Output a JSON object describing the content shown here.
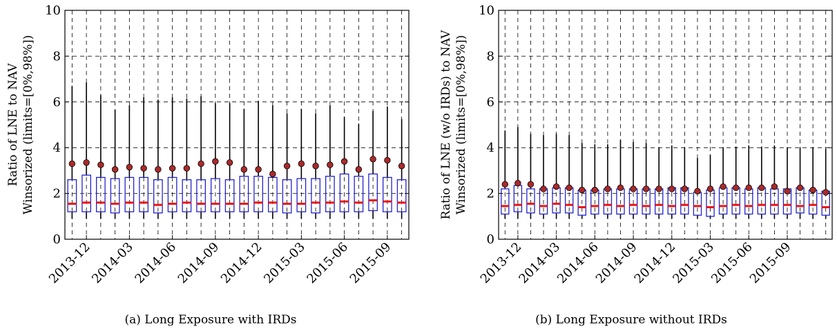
{
  "captions": [
    "(a) Long Exposure with IRDs",
    "(b) Long Exposure without IRDs"
  ],
  "colors": {
    "box": "#2222cc",
    "median": "#ee1111",
    "mean_fill": "#aa2a2a",
    "whisker": "#000000",
    "grid": "#000000"
  },
  "chart_data": [
    {
      "type": "box",
      "ylabel_lines": [
        "Ratio of LNE to NAV",
        "Winsorized (limits=[0%,98%])"
      ],
      "ylim": [
        0,
        10
      ],
      "yticks": [
        0,
        2,
        4,
        6,
        8,
        10
      ],
      "grid": true,
      "xtick_labels": [
        "2013-12",
        "2014-03",
        "2014-06",
        "2014-09",
        "2014-12",
        "2015-03",
        "2015-06",
        "2015-09"
      ],
      "xtick_positions": [
        1,
        4,
        7,
        10,
        13,
        16,
        19,
        22
      ],
      "boxes": [
        {
          "min": 0.9,
          "q1": 1.2,
          "median": 1.55,
          "q3": 2.6,
          "max": 6.7,
          "mean": 3.3
        },
        {
          "min": 0.9,
          "q1": 1.2,
          "median": 1.6,
          "q3": 2.8,
          "max": 6.85,
          "mean": 3.35
        },
        {
          "min": 0.9,
          "q1": 1.2,
          "median": 1.6,
          "q3": 2.7,
          "max": 6.3,
          "mean": 3.25
        },
        {
          "min": 0.9,
          "q1": 1.15,
          "median": 1.55,
          "q3": 2.65,
          "max": 5.65,
          "mean": 3.05
        },
        {
          "min": 0.9,
          "q1": 1.2,
          "median": 1.6,
          "q3": 2.7,
          "max": 5.85,
          "mean": 3.15
        },
        {
          "min": 0.9,
          "q1": 1.2,
          "median": 1.6,
          "q3": 2.7,
          "max": 6.2,
          "mean": 3.1
        },
        {
          "min": 0.9,
          "q1": 1.15,
          "median": 1.5,
          "q3": 2.6,
          "max": 6.1,
          "mean": 3.05
        },
        {
          "min": 0.9,
          "q1": 1.2,
          "median": 1.55,
          "q3": 2.7,
          "max": 6.2,
          "mean": 3.1
        },
        {
          "min": 0.9,
          "q1": 1.2,
          "median": 1.6,
          "q3": 2.6,
          "max": 6.15,
          "mean": 3.1
        },
        {
          "min": 0.9,
          "q1": 1.2,
          "median": 1.55,
          "q3": 2.6,
          "max": 6.25,
          "mean": 3.3
        },
        {
          "min": 0.9,
          "q1": 1.2,
          "median": 1.55,
          "q3": 2.65,
          "max": 5.95,
          "mean": 3.4
        },
        {
          "min": 0.9,
          "q1": 1.2,
          "median": 1.55,
          "q3": 2.6,
          "max": 5.95,
          "mean": 3.35
        },
        {
          "min": 0.9,
          "q1": 1.2,
          "median": 1.55,
          "q3": 2.75,
          "max": 5.7,
          "mean": 3.05
        },
        {
          "min": 0.9,
          "q1": 1.2,
          "median": 1.6,
          "q3": 2.75,
          "max": 6.05,
          "mean": 3.05
        },
        {
          "min": 0.9,
          "q1": 1.2,
          "median": 1.6,
          "q3": 2.7,
          "max": 5.85,
          "mean": 2.85
        },
        {
          "min": 0.9,
          "q1": 1.15,
          "median": 1.55,
          "q3": 2.6,
          "max": 5.5,
          "mean": 3.2
        },
        {
          "min": 0.9,
          "q1": 1.2,
          "median": 1.55,
          "q3": 2.65,
          "max": 5.7,
          "mean": 3.3
        },
        {
          "min": 0.9,
          "q1": 1.15,
          "median": 1.6,
          "q3": 2.65,
          "max": 5.5,
          "mean": 3.2
        },
        {
          "min": 0.9,
          "q1": 1.2,
          "median": 1.6,
          "q3": 2.75,
          "max": 5.85,
          "mean": 3.25
        },
        {
          "min": 0.9,
          "q1": 1.2,
          "median": 1.65,
          "q3": 2.85,
          "max": 5.35,
          "mean": 3.4
        },
        {
          "min": 0.9,
          "q1": 1.2,
          "median": 1.6,
          "q3": 2.75,
          "max": 5.05,
          "mean": 3.05
        },
        {
          "min": 0.9,
          "q1": 1.25,
          "median": 1.7,
          "q3": 2.85,
          "max": 5.6,
          "mean": 3.5
        },
        {
          "min": 0.9,
          "q1": 1.2,
          "median": 1.65,
          "q3": 2.7,
          "max": 5.8,
          "mean": 3.45
        },
        {
          "min": 0.9,
          "q1": 1.2,
          "median": 1.6,
          "q3": 2.6,
          "max": 5.25,
          "mean": 3.2
        }
      ]
    },
    {
      "type": "box",
      "ylabel_lines": [
        "Ratio of LNE (w/o IRDs) to NAV",
        "Winsorized (limits=[0%,98%])"
      ],
      "ylim": [
        0,
        10
      ],
      "yticks": [
        0,
        2,
        4,
        6,
        8,
        10
      ],
      "grid": true,
      "xtick_labels": [
        "2013-12",
        "2014-03",
        "2014-06",
        "2014-09",
        "2014-12",
        "2015-03",
        "2015-06",
        "2015-09"
      ],
      "xtick_positions": [
        1,
        4,
        7,
        10,
        13,
        16,
        19,
        22
      ],
      "boxes": [
        {
          "min": 0.9,
          "q1": 1.1,
          "median": 1.45,
          "q3": 2.2,
          "max": 4.75,
          "mean": 2.4
        },
        {
          "min": 0.9,
          "q1": 1.2,
          "median": 1.5,
          "q3": 2.35,
          "max": 4.9,
          "mean": 2.45
        },
        {
          "min": 0.9,
          "q1": 1.15,
          "median": 1.55,
          "q3": 2.2,
          "max": 4.6,
          "mean": 2.4
        },
        {
          "min": 0.9,
          "q1": 1.1,
          "median": 1.45,
          "q3": 2.2,
          "max": 4.55,
          "mean": 2.2
        },
        {
          "min": 0.9,
          "q1": 1.15,
          "median": 1.55,
          "q3": 2.25,
          "max": 4.6,
          "mean": 2.3
        },
        {
          "min": 0.9,
          "q1": 1.15,
          "median": 1.5,
          "q3": 2.25,
          "max": 4.55,
          "mean": 2.25
        },
        {
          "min": 0.9,
          "q1": 1.05,
          "median": 1.4,
          "q3": 2.15,
          "max": 4.2,
          "mean": 2.15
        },
        {
          "min": 0.9,
          "q1": 1.1,
          "median": 1.45,
          "q3": 2.15,
          "max": 4.15,
          "mean": 2.15
        },
        {
          "min": 0.9,
          "q1": 1.1,
          "median": 1.5,
          "q3": 2.2,
          "max": 4.15,
          "mean": 2.2
        },
        {
          "min": 0.9,
          "q1": 1.1,
          "median": 1.45,
          "q3": 2.2,
          "max": 4.35,
          "mean": 2.25
        },
        {
          "min": 0.9,
          "q1": 1.1,
          "median": 1.5,
          "q3": 2.2,
          "max": 4.25,
          "mean": 2.2
        },
        {
          "min": 0.9,
          "q1": 1.1,
          "median": 1.45,
          "q3": 2.2,
          "max": 4.2,
          "mean": 2.2
        },
        {
          "min": 0.9,
          "q1": 1.1,
          "median": 1.5,
          "q3": 2.2,
          "max": 4.0,
          "mean": 2.2
        },
        {
          "min": 0.9,
          "q1": 1.1,
          "median": 1.45,
          "q3": 2.25,
          "max": 4.1,
          "mean": 2.2
        },
        {
          "min": 0.9,
          "q1": 1.1,
          "median": 1.5,
          "q3": 2.25,
          "max": 4.0,
          "mean": 2.2
        },
        {
          "min": 0.9,
          "q1": 1.05,
          "median": 1.45,
          "q3": 2.05,
          "max": 3.55,
          "mean": 2.1
        },
        {
          "min": 0.9,
          "q1": 1.0,
          "median": 1.4,
          "q3": 2.15,
          "max": 3.7,
          "mean": 2.2
        },
        {
          "min": 0.9,
          "q1": 1.1,
          "median": 1.45,
          "q3": 2.25,
          "max": 4.0,
          "mean": 2.3
        },
        {
          "min": 0.9,
          "q1": 1.1,
          "median": 1.5,
          "q3": 2.25,
          "max": 4.05,
          "mean": 2.25
        },
        {
          "min": 0.9,
          "q1": 1.1,
          "median": 1.45,
          "q3": 2.2,
          "max": 4.1,
          "mean": 2.25
        },
        {
          "min": 0.9,
          "q1": 1.1,
          "median": 1.5,
          "q3": 2.25,
          "max": 4.05,
          "mean": 2.25
        },
        {
          "min": 0.9,
          "q1": 1.1,
          "median": 1.5,
          "q3": 2.2,
          "max": 4.1,
          "mean": 2.3
        },
        {
          "min": 0.9,
          "q1": 1.1,
          "median": 1.5,
          "q3": 2.2,
          "max": 4.0,
          "mean": 2.1
        },
        {
          "min": 0.9,
          "q1": 1.15,
          "median": 1.45,
          "q3": 2.25,
          "max": 4.0,
          "mean": 2.25
        },
        {
          "min": 0.9,
          "q1": 1.1,
          "median": 1.5,
          "q3": 2.15,
          "max": 4.0,
          "mean": 2.15
        },
        {
          "min": 0.9,
          "q1": 1.05,
          "median": 1.4,
          "q3": 2.1,
          "max": 3.95,
          "mean": 2.05
        }
      ]
    }
  ]
}
